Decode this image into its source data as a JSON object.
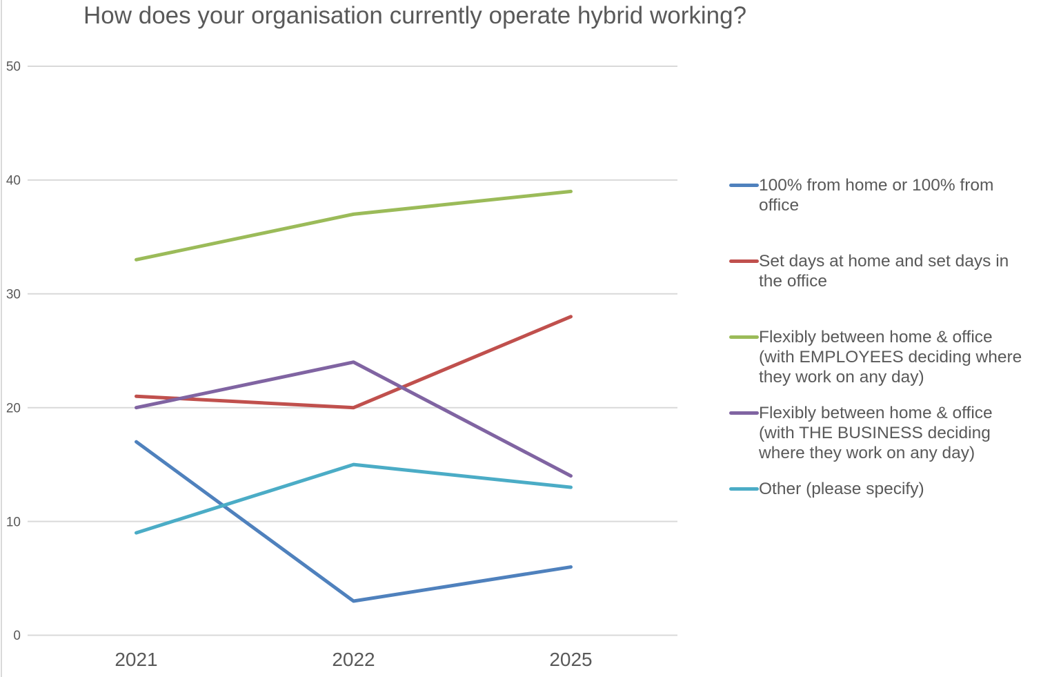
{
  "chart_data": {
    "type": "line",
    "title": "How does your organisation currently operate hybrid working?",
    "categories": [
      "2021",
      "2022",
      "2025"
    ],
    "series": [
      {
        "name": "100% from home or 100% from office",
        "color": "#4F81BD",
        "values": [
          17,
          3,
          6
        ]
      },
      {
        "name": "Set days at home and set days in the office",
        "color": "#C0504D",
        "values": [
          21,
          20,
          28
        ]
      },
      {
        "name": "Flexibly between home & office (with EMPLOYEES deciding where they work on any day)",
        "color": "#9BBB59",
        "values": [
          33,
          37,
          39
        ]
      },
      {
        "name": "Flexibly between home & office (with THE BUSINESS deciding where they work on any day)",
        "color": "#8064A2",
        "values": [
          20,
          24,
          14
        ]
      },
      {
        "name": "Other (please specify)",
        "color": "#4BACC6",
        "values": [
          9,
          15,
          13
        ]
      }
    ],
    "ylim": [
      0,
      50
    ],
    "yticks": [
      50,
      40,
      30,
      20,
      10,
      0
    ],
    "grid": true,
    "legend_position": "right",
    "colors": {
      "text": "#595959",
      "gridline": "#D9D9D9",
      "background": "#FFFFFF"
    }
  }
}
